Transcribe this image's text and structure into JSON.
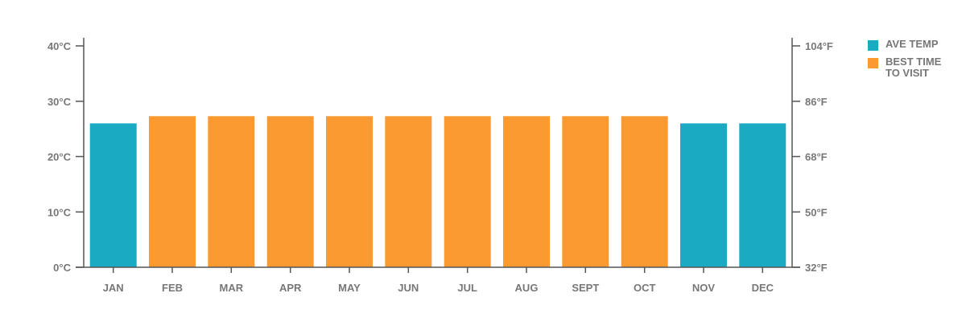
{
  "colors": {
    "ave_temp": "#1aabc3",
    "best_time": "#fb9a30",
    "axis": "#555555",
    "text": "#777777"
  },
  "legend": [
    {
      "label": "AVE TEMP",
      "color": "#1aabc3"
    },
    {
      "label": "BEST TIME TO VISIT",
      "color": "#fb9a30"
    }
  ],
  "chart_data": {
    "type": "bar",
    "categories": [
      "JAN",
      "FEB",
      "MAR",
      "APR",
      "MAY",
      "JUN",
      "JUL",
      "AUG",
      "SEPT",
      "OCT",
      "NOV",
      "DEC"
    ],
    "values": [
      26,
      27.3,
      27.3,
      27.3,
      27.3,
      27.3,
      27.3,
      27.3,
      27.3,
      27.3,
      26,
      26
    ],
    "best_time_to_visit": [
      false,
      true,
      true,
      true,
      true,
      true,
      true,
      true,
      true,
      true,
      false,
      false
    ],
    "ylim": [
      0,
      40
    ],
    "y_ticks_left": [
      "0°C",
      "10°C",
      "20°C",
      "30°C",
      "40°C"
    ],
    "y_ticks_right": [
      "32°F",
      "50°F",
      "68°F",
      "86°F",
      "104°F"
    ],
    "grid": false,
    "legend_position": "right"
  }
}
